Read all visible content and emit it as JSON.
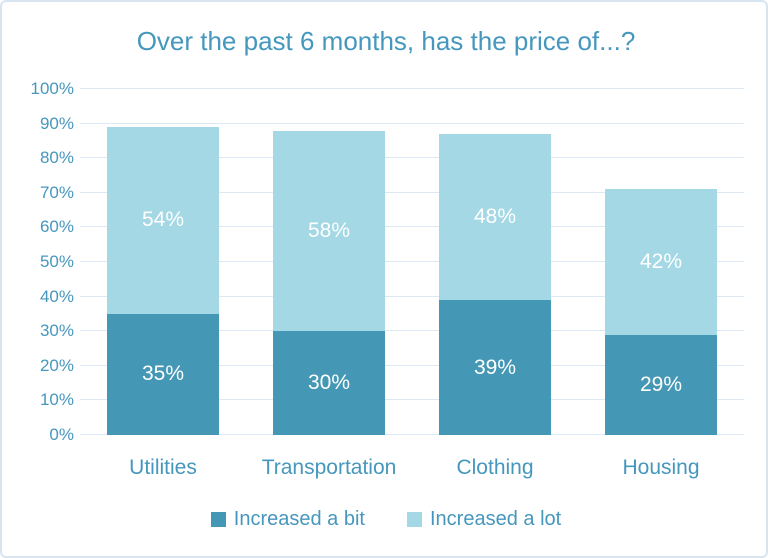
{
  "title": "Over the past 6 months, has the price of...?",
  "chart_data": {
    "type": "bar",
    "stacked": true,
    "title": "Over the past 6 months, has the price of...?",
    "categories": [
      "Utilities",
      "Transportation",
      "Clothing",
      "Housing"
    ],
    "series": [
      {
        "name": "Increased a bit",
        "color": "#4498b5",
        "values": [
          35,
          30,
          39,
          29
        ]
      },
      {
        "name": "Increased a lot",
        "color": "#a4d8e5",
        "values": [
          54,
          58,
          48,
          42
        ]
      }
    ],
    "totals": [
      89,
      88,
      87,
      71
    ],
    "data_labels": [
      "35%",
      "30%",
      "39%",
      "29%",
      "54%",
      "58%",
      "48%",
      "42%"
    ],
    "ylim": [
      0,
      100
    ],
    "ytick_step": 10,
    "ytick_labels": [
      "0%",
      "10%",
      "20%",
      "30%",
      "40%",
      "50%",
      "60%",
      "70%",
      "80%",
      "90%",
      "100%"
    ],
    "grid": true,
    "legend_position": "bottom",
    "legend_entries": [
      "Increased a bit",
      "Increased a lot"
    ],
    "data_label_position": "inside-center"
  },
  "colors": {
    "text": "#4697bd",
    "grid": "#dce9f4",
    "frame_border": "#d8e5f1",
    "background": "#ffffff",
    "data_label": "#ffffff",
    "series_dark": "#4498b5",
    "series_light": "#a4d8e5"
  }
}
